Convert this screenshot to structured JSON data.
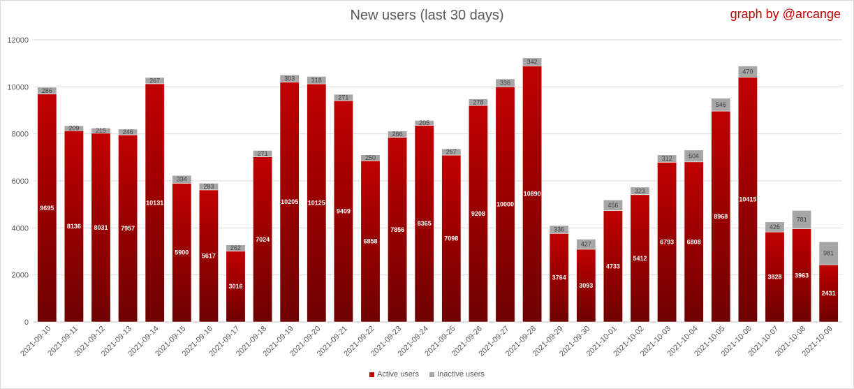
{
  "chart_data": {
    "type": "bar",
    "stacked": true,
    "title": "New users (last 30 days)",
    "credit": "graph by @arcange",
    "xlabel": "",
    "ylabel": "",
    "ylim": [
      0,
      12000
    ],
    "yticks": [
      0,
      2000,
      4000,
      6000,
      8000,
      10000,
      12000
    ],
    "grid": true,
    "legend_position": "bottom",
    "categories": [
      "2021-09-10",
      "2021-09-11",
      "2021-09-12",
      "2021-09-13",
      "2021-09-14",
      "2021-09-15",
      "2021-09-16",
      "2021-09-17",
      "2021-09-18",
      "2021-09-19",
      "2021-09-20",
      "2021-09-21",
      "2021-09-22",
      "2021-09-23",
      "2021-09-24",
      "2021-09-25",
      "2021-09-26",
      "2021-09-27",
      "2021-09-28",
      "2021-09-29",
      "2021-09-30",
      "2021-10-01",
      "2021-10-02",
      "2021-10-03",
      "2021-10-04",
      "2021-10-05",
      "2021-10-06",
      "2021-10-07",
      "2021-10-08",
      "2021-10-09"
    ],
    "series": [
      {
        "name": "Active users",
        "color": "#c00000",
        "values": [
          9695,
          8136,
          8031,
          7957,
          10131,
          5900,
          5617,
          3016,
          7024,
          10205,
          10125,
          9409,
          6858,
          7856,
          8365,
          7098,
          9208,
          10000,
          10890,
          3764,
          3093,
          4733,
          5412,
          6793,
          6808,
          8968,
          10415,
          3828,
          3963,
          2431
        ]
      },
      {
        "name": "Inactive users",
        "color": "#a6a6a6",
        "values": [
          286,
          209,
          215,
          246,
          267,
          334,
          283,
          262,
          271,
          303,
          318,
          271,
          250,
          266,
          205,
          267,
          278,
          336,
          342,
          336,
          427,
          456,
          323,
          312,
          504,
          546,
          470,
          426,
          781,
          981
        ]
      }
    ]
  }
}
